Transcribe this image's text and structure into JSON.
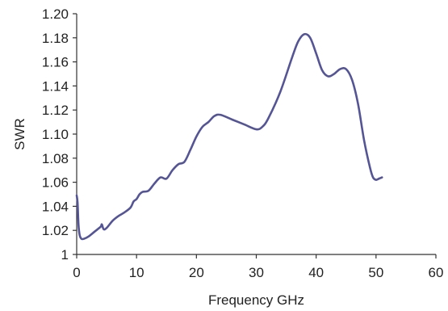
{
  "chart_data": {
    "type": "line",
    "title": "",
    "xlabel": "Frequency GHz",
    "ylabel": "SWR",
    "xlim": [
      0,
      60
    ],
    "ylim": [
      1.0,
      1.2
    ],
    "x_ticks": [
      0,
      10,
      20,
      30,
      40,
      50,
      60
    ],
    "y_ticks": [
      1.0,
      1.02,
      1.04,
      1.06,
      1.08,
      1.1,
      1.12,
      1.14,
      1.16,
      1.18,
      1.2
    ],
    "x_tick_labels": [
      "0",
      "10",
      "20",
      "30",
      "40",
      "50",
      "60"
    ],
    "y_tick_labels": [
      "1",
      "1.02",
      "1.04",
      "1.06",
      "1.08",
      "1.10",
      "1.12",
      "1.14",
      "1.16",
      "1.18",
      "1.20"
    ],
    "grid": false,
    "legend": "none",
    "series": [
      {
        "color": "#555595",
        "x": [
          0,
          0.15,
          0.3,
          0.5,
          0.8,
          1.2,
          2.0,
          3.0,
          4.0,
          4.2,
          4.5,
          5.0,
          6.0,
          7.0,
          8.0,
          9.0,
          9.5,
          10.0,
          10.5,
          11.0,
          12.0,
          13.0,
          14.0,
          15.0,
          16.0,
          17.0,
          18.0,
          19.0,
          20.0,
          21.0,
          22.0,
          23.0,
          24.0,
          26.0,
          28.0,
          30.0,
          31.0,
          32.0,
          34.0,
          36.0,
          37.0,
          38.0,
          39.0,
          40.0,
          41.0,
          42.0,
          43.0,
          44.0,
          45.0,
          46.0,
          47.0,
          48.0,
          49.0,
          49.5,
          50.0,
          50.5,
          51.0
        ],
        "y": [
          1.049,
          1.043,
          1.025,
          1.016,
          1.013,
          1.013,
          1.015,
          1.019,
          1.023,
          1.025,
          1.021,
          1.022,
          1.028,
          1.032,
          1.035,
          1.039,
          1.044,
          1.046,
          1.05,
          1.052,
          1.053,
          1.059,
          1.064,
          1.063,
          1.07,
          1.075,
          1.077,
          1.087,
          1.098,
          1.106,
          1.11,
          1.115,
          1.116,
          1.112,
          1.108,
          1.104,
          1.106,
          1.113,
          1.135,
          1.164,
          1.177,
          1.183,
          1.18,
          1.167,
          1.153,
          1.148,
          1.15,
          1.154,
          1.154,
          1.145,
          1.125,
          1.095,
          1.072,
          1.064,
          1.062,
          1.063,
          1.064
        ]
      }
    ]
  }
}
